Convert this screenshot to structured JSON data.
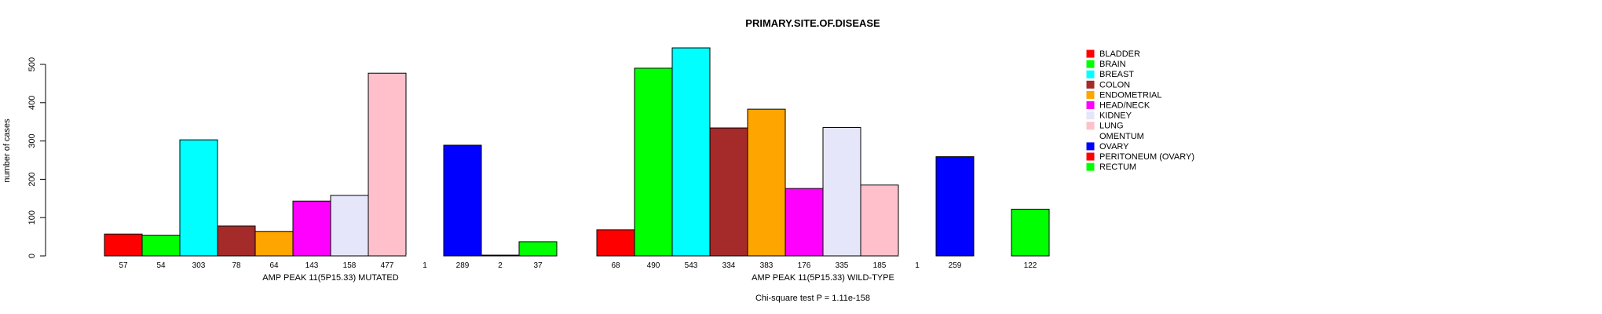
{
  "chart_data": {
    "type": "bar",
    "title": "PRIMARY.SITE.OF.DISEASE",
    "ylabel": "number of cases",
    "ylim": [
      0,
      500
    ],
    "yticks": [
      0,
      100,
      200,
      300,
      400,
      500
    ],
    "categories": [
      "BLADDER",
      "BRAIN",
      "BREAST",
      "COLON",
      "ENDOMETRIAL",
      "HEAD/NECK",
      "KIDNEY",
      "LUNG",
      "OMENTUM",
      "OVARY",
      "PERITONEUM (OVARY)",
      "RECTUM"
    ],
    "colors": [
      "#ff0000",
      "#00ff00",
      "#00ffff",
      "#a52a2a",
      "#ffa500",
      "#ff00ff",
      "#e6e6fa",
      "#ffc0cb",
      "#ffffff",
      "#0000ff",
      "#ff0000",
      "#00ff00"
    ],
    "series": [
      {
        "name": "AMP PEAK 11(5P15.33) MUTATED",
        "values": [
          57,
          54,
          303,
          78,
          64,
          143,
          158,
          477,
          1,
          289,
          2,
          37
        ],
        "labels": [
          "57",
          "54",
          "303",
          "78",
          "64",
          "143",
          "158",
          "477",
          "1",
          "289",
          "2",
          "37"
        ]
      },
      {
        "name": "AMP PEAK 11(5P15.33) WILD-TYPE",
        "values": [
          68,
          490,
          543,
          334,
          383,
          176,
          335,
          185,
          1,
          259,
          0,
          122
        ],
        "labels": [
          "68",
          "490",
          "543",
          "334",
          "383",
          "176",
          "335",
          "185",
          "1",
          "259",
          "",
          "122"
        ]
      }
    ],
    "legend_position": "right",
    "annotation": "Chi-square test P = 1.11e-158",
    "grid": false
  }
}
